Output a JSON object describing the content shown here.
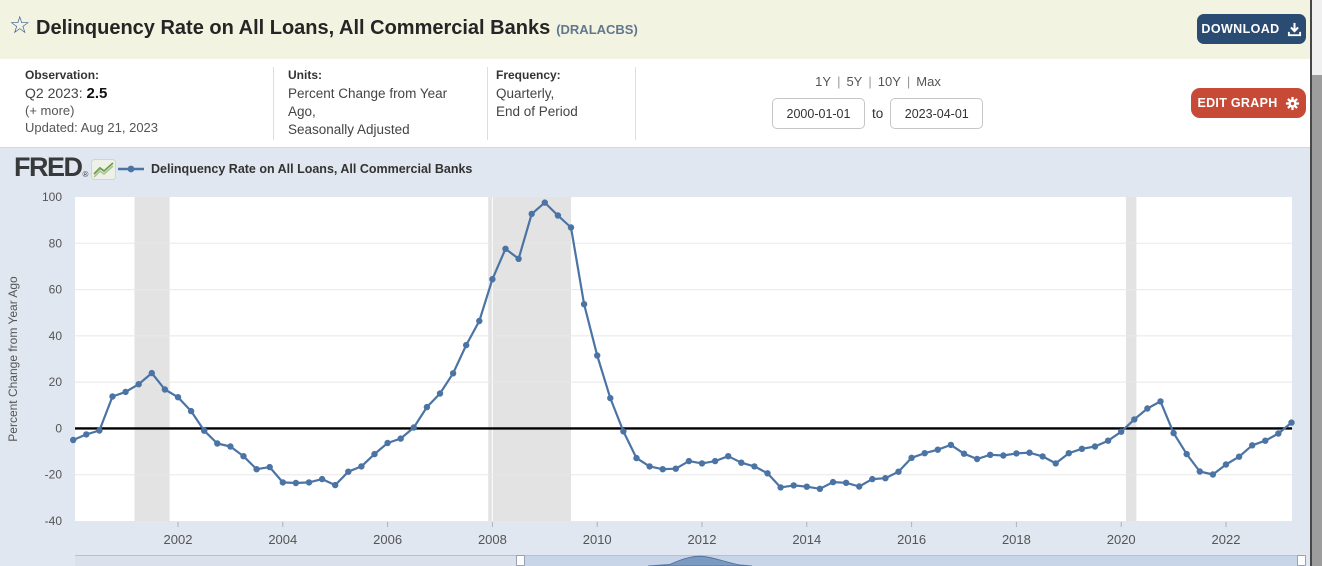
{
  "header": {
    "title": "Delinquency Rate on All Loans, All Commercial Banks",
    "series_id": "(DRALACBS)",
    "download_label": "DOWNLOAD"
  },
  "info": {
    "observation": {
      "label": "Observation:",
      "period": "Q2 2023:",
      "value": "2.5",
      "more": "(+ more)",
      "updated": "Updated: Aug 21, 2023"
    },
    "units": {
      "label": "Units:",
      "line1": "Percent Change from Year",
      "line2": "Ago,",
      "line3": "Seasonally Adjusted"
    },
    "frequency": {
      "label": "Frequency:",
      "line1": "Quarterly,",
      "line2": "End of Period"
    },
    "ranges": [
      "1Y",
      "5Y",
      "10Y",
      "Max"
    ],
    "date_from": "2000-01-01",
    "to_label": "to",
    "date_to": "2023-04-01",
    "edit_graph_label": "EDIT GRAPH"
  },
  "legend": {
    "fred": "FRED",
    "series_label": "Delinquency Rate on All Loans, All Commercial Banks"
  },
  "colors": {
    "header_bg": "#f3f3e2",
    "download_bg": "#2a4b72",
    "edit_graph_bg": "#c64a35",
    "chart_bg": "#e0e7f0",
    "line": "#4b74a5",
    "recession_band": "#e3e3e3",
    "zero_line": "#000000",
    "gridline": "#e8e8e8",
    "tick_text": "#555555"
  },
  "chart_data": {
    "type": "line",
    "title": "Delinquency Rate on All Loans, All Commercial Banks",
    "ylabel": "Percent Change from Year Ago",
    "xlabel": "",
    "x_start": 2000.0,
    "x_step": 0.25,
    "x_end": 2023.25,
    "ylim": [
      -40,
      100
    ],
    "yticks": [
      100,
      80,
      60,
      40,
      20,
      0,
      -20,
      -40
    ],
    "xticks": [
      2002,
      2004,
      2006,
      2008,
      2010,
      2012,
      2014,
      2016,
      2018,
      2020,
      2022
    ],
    "grid": "horizontal",
    "legend_position": "top-left",
    "markers": true,
    "zero_line": true,
    "recessions": [
      [
        2001.17,
        2001.84
      ],
      [
        2007.92,
        2009.5
      ],
      [
        2020.09,
        2020.29
      ]
    ],
    "values": [
      -5.0,
      -2.6,
      -0.9,
      13.8,
      15.8,
      19.1,
      23.9,
      16.8,
      13.5,
      7.5,
      -1.0,
      -6.5,
      -7.8,
      -12.0,
      -17.6,
      -16.7,
      -23.3,
      -23.6,
      -23.3,
      -21.9,
      -24.5,
      -18.7,
      -16.4,
      -11.1,
      -6.3,
      -4.4,
      0.4,
      9.2,
      15.1,
      23.8,
      36.0,
      46.4,
      64.5,
      77.6,
      73.3,
      92.7,
      97.6,
      92.0,
      86.8,
      53.7,
      31.5,
      13.1,
      -1.3,
      -12.8,
      -16.4,
      -17.6,
      -17.4,
      -14.1,
      -15.1,
      -14.1,
      -12.0,
      -14.8,
      -16.4,
      -19.4,
      -25.5,
      -24.6,
      -25.2,
      -26.1,
      -23.2,
      -23.5,
      -25.1,
      -21.9,
      -21.5,
      -18.7,
      -12.7,
      -10.7,
      -9.2,
      -7.1,
      -10.9,
      -13.2,
      -11.4,
      -11.7,
      -10.8,
      -10.5,
      -12.1,
      -15.1,
      -10.7,
      -8.8,
      -7.8,
      -5.3,
      -1.4,
      3.9,
      8.6,
      11.7,
      -2.0,
      -11.1,
      -18.6,
      -19.9,
      -15.6,
      -12.2,
      -7.3,
      -5.3,
      -2.2,
      2.5
    ],
    "line_color": "#4b74a5"
  }
}
